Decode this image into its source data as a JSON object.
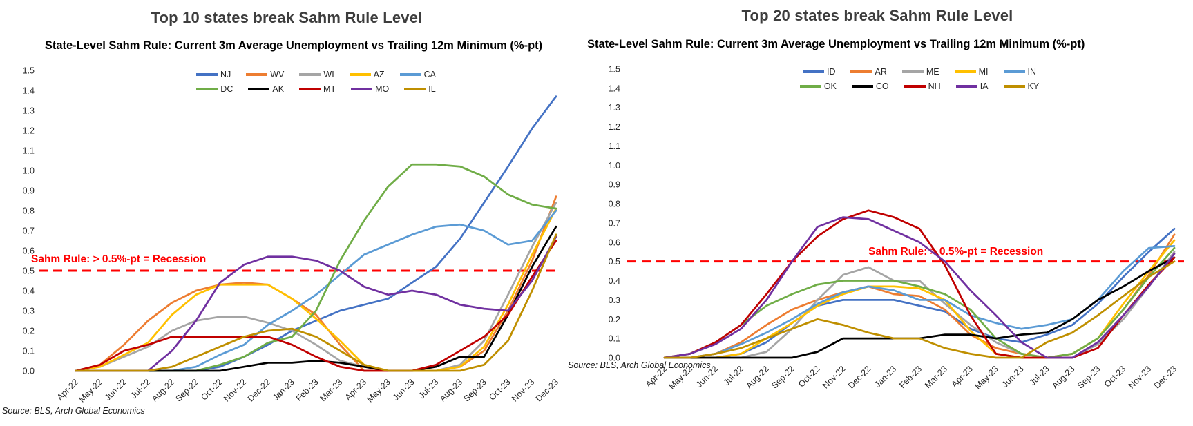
{
  "chart_data": [
    {
      "type": "line",
      "title": "Top 10 states break Sahm Rule Level",
      "subtitle": "State-Level Sahm Rule: Current 3m Average Unemployment vs Trailing 12m Minimum (%-pt)",
      "source": "Source: BLS, Arch Global Economics",
      "threshold_line": {
        "value": 0.5,
        "label": "Sahm Rule: > 0.5%-pt = Recession",
        "color": "#FF0000",
        "style": "dashed"
      },
      "x": [
        "Apr-22",
        "May-22",
        "Jun-22",
        "Jul-22",
        "Aug-22",
        "Sep-22",
        "Oct-22",
        "Nov-22",
        "Dec-22",
        "Jan-23",
        "Feb-23",
        "Mar-23",
        "Apr-23",
        "May-23",
        "Jun-23",
        "Jul-23",
        "Aug-23",
        "Sep-23",
        "Oct-23",
        "Nov-23",
        "Dec-23"
      ],
      "ylim": [
        0,
        1.5
      ],
      "ytick_step": 0.1,
      "grid": false,
      "legend_position": "top-center-two-rows",
      "series": [
        {
          "name": "NJ",
          "color": "#4472C4",
          "values": [
            0,
            0,
            0,
            0,
            0,
            0,
            0.02,
            0.07,
            0.13,
            0.2,
            0.25,
            0.3,
            0.33,
            0.36,
            0.44,
            0.52,
            0.66,
            0.84,
            1.02,
            1.21,
            1.37
          ]
        },
        {
          "name": "WV",
          "color": "#ED7D31",
          "values": [
            0,
            0.03,
            0.13,
            0.25,
            0.34,
            0.4,
            0.43,
            0.44,
            0.43,
            0.36,
            0.28,
            0.13,
            0,
            0,
            0,
            0,
            0.02,
            0.1,
            0.3,
            0.55,
            0.87
          ]
        },
        {
          "name": "WI",
          "color": "#A5A5A5",
          "values": [
            0,
            0.02,
            0.07,
            0.12,
            0.2,
            0.25,
            0.27,
            0.27,
            0.24,
            0.2,
            0.13,
            0.05,
            0.02,
            0,
            0,
            0,
            0.03,
            0.15,
            0.38,
            0.62,
            0.84
          ]
        },
        {
          "name": "AZ",
          "color": "#FFC000",
          "values": [
            0,
            0.02,
            0.08,
            0.14,
            0.28,
            0.38,
            0.43,
            0.43,
            0.43,
            0.36,
            0.26,
            0.15,
            0.03,
            0,
            0,
            0,
            0.02,
            0.12,
            0.33,
            0.58,
            0.81
          ]
        },
        {
          "name": "CA",
          "color": "#5B9BD5",
          "values": [
            0,
            0,
            0,
            0,
            0,
            0.02,
            0.08,
            0.13,
            0.23,
            0.3,
            0.38,
            0.48,
            0.58,
            0.63,
            0.68,
            0.72,
            0.73,
            0.7,
            0.63,
            0.65,
            0.8
          ]
        },
        {
          "name": "DC",
          "color": "#70AD47",
          "values": [
            0,
            0,
            0,
            0,
            0,
            0,
            0.03,
            0.07,
            0.14,
            0.17,
            0.3,
            0.55,
            0.75,
            0.92,
            1.03,
            1.03,
            1.02,
            0.97,
            0.88,
            0.83,
            0.81
          ]
        },
        {
          "name": "AK",
          "color": "#000000",
          "values": [
            0,
            0,
            0,
            0,
            0,
            0,
            0,
            0.02,
            0.04,
            0.04,
            0.05,
            0.04,
            0.02,
            0,
            0,
            0.02,
            0.07,
            0.07,
            0.28,
            0.52,
            0.72
          ]
        },
        {
          "name": "MT",
          "color": "#C00000",
          "values": [
            0,
            0.03,
            0.1,
            0.13,
            0.17,
            0.17,
            0.17,
            0.17,
            0.17,
            0.13,
            0.07,
            0.02,
            0,
            0,
            0,
            0.03,
            0.1,
            0.17,
            0.28,
            0.47,
            0.65
          ]
        },
        {
          "name": "MO",
          "color": "#7030A0",
          "values": [
            0,
            0,
            0,
            0,
            0.1,
            0.25,
            0.44,
            0.53,
            0.57,
            0.57,
            0.55,
            0.5,
            0.42,
            0.38,
            0.4,
            0.38,
            0.33,
            0.31,
            0.3,
            0.45,
            0.67
          ]
        },
        {
          "name": "IL",
          "color": "#BF8F00",
          "values": [
            0,
            0,
            0,
            0,
            0.02,
            0.07,
            0.12,
            0.17,
            0.2,
            0.21,
            0.17,
            0.1,
            0.03,
            0,
            0,
            0,
            0,
            0.03,
            0.15,
            0.4,
            0.68
          ]
        }
      ]
    },
    {
      "type": "line",
      "title": "Top 20 states break Sahm Rule Level",
      "subtitle": "State-Level Sahm Rule: Current 3m Average Unemployment vs Trailing 12m Minimum (%-pt)",
      "source": "Source: BLS, Arch Global Economics",
      "threshold_line": {
        "value": 0.5,
        "label": "Sahm Rule: > 0.5%-pt = Recession",
        "color": "#FF0000",
        "style": "dashed"
      },
      "x": [
        "Apr-22",
        "May-22",
        "Jun-22",
        "Jul-22",
        "Aug-22",
        "Sep-22",
        "Oct-22",
        "Nov-22",
        "Dec-22",
        "Jan-23",
        "Feb-23",
        "Mar-23",
        "Apr-23",
        "May-23",
        "Jun-23",
        "Jul-23",
        "Aug-23",
        "Sep-23",
        "Oct-23",
        "Nov-23",
        "Dec-23"
      ],
      "ylim": [
        0,
        1.5
      ],
      "ytick_step": 0.1,
      "grid": false,
      "legend_position": "top-center-two-rows",
      "series": [
        {
          "name": "ID",
          "color": "#4472C4",
          "values": [
            0,
            0,
            0,
            0.02,
            0.08,
            0.18,
            0.27,
            0.3,
            0.3,
            0.3,
            0.27,
            0.24,
            0.15,
            0.1,
            0.08,
            0.12,
            0.17,
            0.28,
            0.42,
            0.55,
            0.67
          ]
        },
        {
          "name": "AR",
          "color": "#ED7D31",
          "values": [
            0,
            0,
            0.02,
            0.08,
            0.17,
            0.25,
            0.3,
            0.34,
            0.37,
            0.33,
            0.32,
            0.25,
            0.12,
            0.05,
            0.02,
            0,
            0.02,
            0.1,
            0.25,
            0.43,
            0.64
          ]
        },
        {
          "name": "ME",
          "color": "#A5A5A5",
          "values": [
            0,
            0,
            0,
            0,
            0.03,
            0.15,
            0.3,
            0.43,
            0.47,
            0.4,
            0.4,
            0.28,
            0.17,
            0.08,
            0.02,
            0,
            0,
            0.07,
            0.2,
            0.37,
            0.55
          ]
        },
        {
          "name": "MI",
          "color": "#FFC000",
          "values": [
            0,
            0,
            0,
            0.02,
            0.1,
            0.18,
            0.27,
            0.33,
            0.37,
            0.37,
            0.36,
            0.3,
            0.14,
            0.02,
            0,
            0,
            0.02,
            0.1,
            0.28,
            0.45,
            0.61
          ]
        },
        {
          "name": "IN",
          "color": "#5B9BD5",
          "values": [
            0,
            0,
            0.02,
            0.07,
            0.13,
            0.2,
            0.28,
            0.34,
            0.37,
            0.35,
            0.3,
            0.3,
            0.22,
            0.18,
            0.15,
            0.17,
            0.2,
            0.3,
            0.45,
            0.57,
            0.58
          ]
        },
        {
          "name": "OK",
          "color": "#70AD47",
          "values": [
            0,
            0.02,
            0.08,
            0.17,
            0.27,
            0.33,
            0.38,
            0.4,
            0.4,
            0.4,
            0.37,
            0.33,
            0.25,
            0.1,
            0.02,
            0,
            0.02,
            0.1,
            0.25,
            0.42,
            0.57
          ]
        },
        {
          "name": "CO",
          "color": "#000000",
          "values": [
            0,
            0,
            0,
            0,
            0,
            0,
            0.03,
            0.1,
            0.1,
            0.1,
            0.1,
            0.12,
            0.12,
            0.1,
            0.12,
            0.13,
            0.2,
            0.3,
            0.37,
            0.45,
            0.52
          ]
        },
        {
          "name": "NH",
          "color": "#C00000",
          "values": [
            0,
            0.02,
            0.08,
            0.17,
            0.33,
            0.5,
            0.63,
            0.72,
            0.765,
            0.73,
            0.67,
            0.48,
            0.22,
            0.02,
            0,
            0,
            0,
            0.05,
            0.22,
            0.38,
            0.52
          ]
        },
        {
          "name": "IA",
          "color": "#7030A0",
          "values": [
            0,
            0.02,
            0.07,
            0.15,
            0.3,
            0.5,
            0.68,
            0.73,
            0.72,
            0.66,
            0.6,
            0.5,
            0.35,
            0.22,
            0.08,
            0,
            0,
            0.08,
            0.22,
            0.37,
            0.54
          ]
        },
        {
          "name": "KY",
          "color": "#BF8F00",
          "values": [
            0,
            0,
            0.02,
            0.05,
            0.1,
            0.15,
            0.2,
            0.17,
            0.13,
            0.1,
            0.1,
            0.05,
            0.02,
            0,
            0,
            0.08,
            0.13,
            0.22,
            0.32,
            0.42,
            0.5
          ]
        }
      ]
    }
  ]
}
